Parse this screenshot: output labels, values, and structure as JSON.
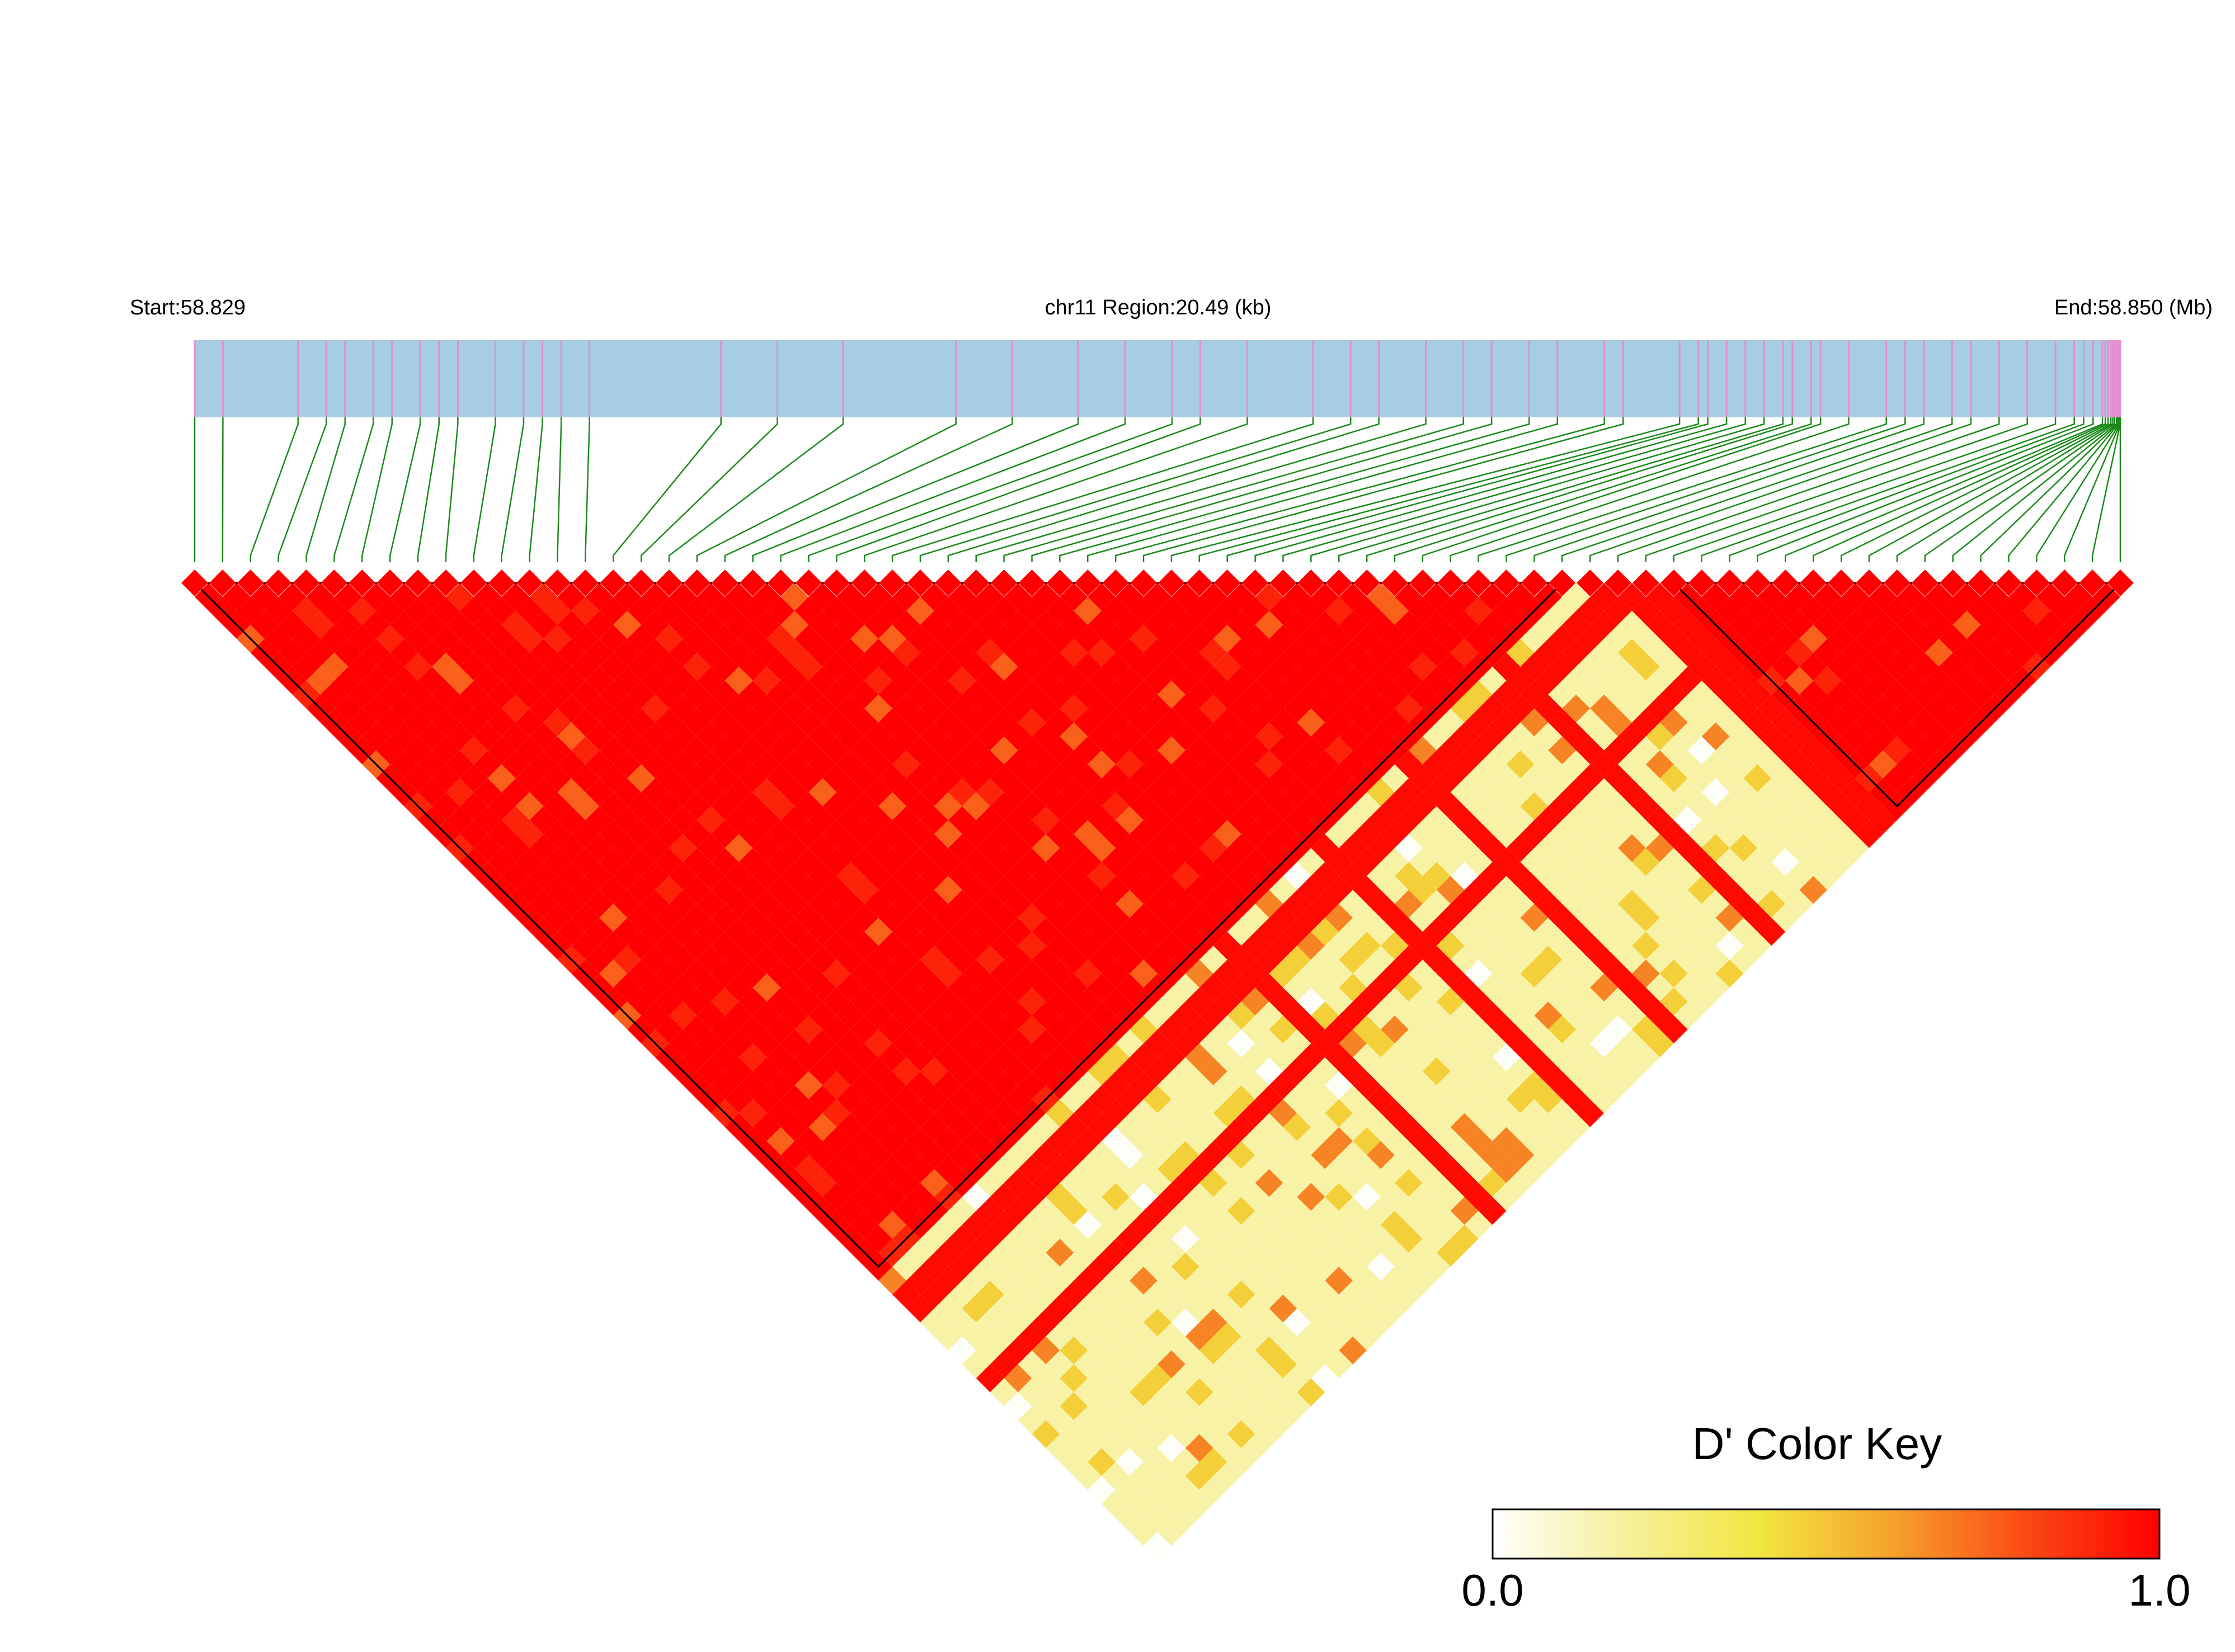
{
  "chart_data": {
    "type": "heatmap",
    "subtype": "ld-triangle",
    "header": {
      "start_label": "Start:58.829",
      "region_label": "chr11 Region:20.49 (kb)",
      "end_label": "End:58.850 (Mb)"
    },
    "region": {
      "chromosome": "chr11",
      "start_mb": 58.829,
      "end_mb": 58.85,
      "length_kb": 20.49
    },
    "snp_count": 70,
    "snp_positions_kb": [
      0.0,
      0.3,
      1.1,
      1.4,
      1.6,
      1.9,
      2.1,
      2.4,
      2.6,
      2.8,
      3.2,
      3.5,
      3.7,
      3.9,
      4.2,
      5.6,
      6.2,
      6.9,
      8.1,
      8.7,
      9.4,
      9.9,
      10.4,
      10.7,
      11.2,
      11.9,
      12.3,
      12.6,
      13.1,
      13.5,
      13.8,
      14.2,
      14.5,
      15.0,
      15.2,
      15.8,
      16.0,
      16.1,
      16.3,
      16.5,
      16.7,
      16.9,
      17.0,
      17.2,
      17.3,
      17.6,
      18.0,
      18.2,
      18.4,
      18.7,
      18.9,
      19.2,
      19.5,
      19.8,
      20.0,
      20.1,
      20.2,
      20.3,
      20.33,
      20.36,
      20.39,
      20.41,
      20.43,
      20.45,
      20.46,
      20.47,
      20.48,
      20.485,
      20.488,
      20.49
    ],
    "ld_blocks": [
      {
        "from_snp": 0,
        "to_snp": 49,
        "value": 1.0
      },
      {
        "from_snp": 53,
        "to_snp": 69,
        "value": 1.0
      }
    ],
    "strong_ld_lines": [
      {
        "snp": 24,
        "value": 1.0
      },
      {
        "snp": 31,
        "value": 1.0
      },
      {
        "snp": 37,
        "value": 1.0
      },
      {
        "snp": 44,
        "value": 1.0
      },
      {
        "snp": 51,
        "value": 1.0
      },
      {
        "snp": 52,
        "value": 1.0
      },
      {
        "snp": 57,
        "value": 1.0
      }
    ],
    "color_key": {
      "title": "D' Color Key",
      "min_label": "0.0",
      "max_label": "1.0",
      "min": 0.0,
      "max": 1.0,
      "stops": [
        "#ffffff",
        "#f5f09a",
        "#f2e640",
        "#f4a22c",
        "#fa4a14",
        "#ff0000"
      ]
    },
    "colors": {
      "track_fill": "#a6cde2",
      "snp_tick": "#e38fcf",
      "connector": "#1a8a1a",
      "block_outline": "#000000",
      "high_ld": "#ff0000",
      "low_ld": "#f7f2a6"
    }
  }
}
